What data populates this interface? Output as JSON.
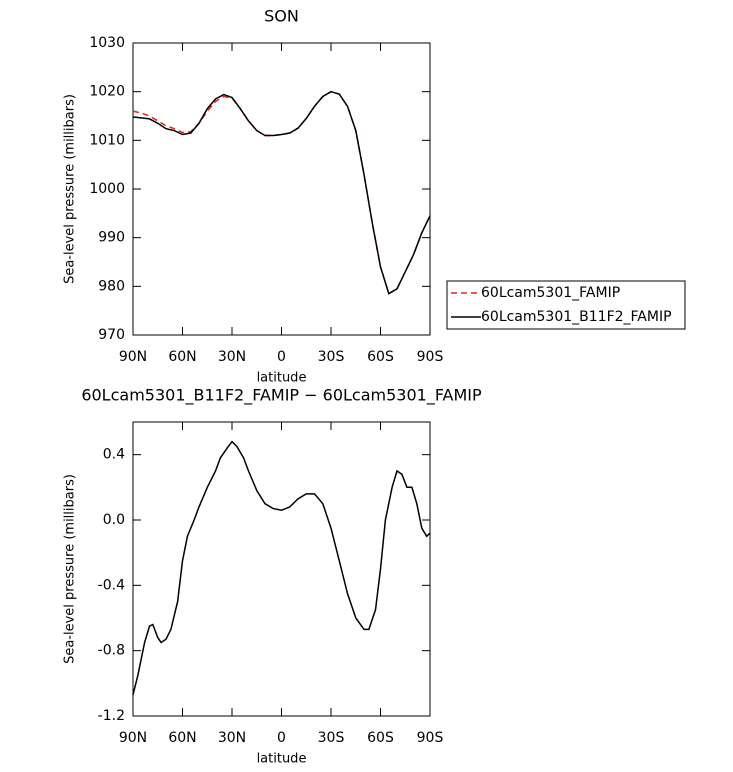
{
  "chart_data": [
    {
      "type": "line",
      "title": "SON",
      "xlabel": "latitude",
      "ylabel": "Sea-level pressure (millibars)",
      "x": [
        90,
        85,
        80,
        75,
        70,
        65,
        60,
        55,
        50,
        45,
        40,
        35,
        30,
        25,
        20,
        15,
        10,
        5,
        0,
        -5,
        -10,
        -15,
        -20,
        -25,
        -30,
        -35,
        -40,
        -45,
        -50,
        -55,
        -60,
        -65,
        -70,
        -75,
        -80,
        -85,
        -90
      ],
      "xlim": [
        90,
        -90
      ],
      "xticks": [
        {
          "value": 90,
          "label": "90N"
        },
        {
          "value": 60,
          "label": "60N"
        },
        {
          "value": 30,
          "label": "30N"
        },
        0,
        {
          "value": -30,
          "label": "30S"
        },
        {
          "value": -60,
          "label": "60S"
        },
        {
          "value": -90,
          "label": "90S"
        }
      ],
      "ylim": [
        970,
        1030
      ],
      "yticks": [
        970,
        980,
        990,
        1000,
        1010,
        1020,
        1030
      ],
      "legend": "outside-right",
      "series": [
        {
          "name": "60Lcam5301_FAMIP",
          "color": "#e8201e",
          "linestyle": "dashed",
          "values": [
            1016,
            1015.6,
            1015,
            1014,
            1013,
            1012.4,
            1011.6,
            1011.8,
            1013.5,
            1016,
            1018,
            1019,
            1018.7,
            1016.5,
            1014,
            1012,
            1011,
            1011,
            1011.2,
            1011.5,
            1012.5,
            1014.5,
            1017,
            1019,
            1020,
            1019.5,
            1017,
            1012,
            1003,
            993,
            984,
            978.5,
            979.5,
            983,
            986.5,
            991,
            994.5
          ]
        },
        {
          "name": "60Lcam5301_B11F2_FAMIP",
          "color": "#000000",
          "linestyle": "solid",
          "values": [
            1014.8,
            1014.6,
            1014.4,
            1013.5,
            1012.4,
            1012,
            1011.2,
            1011.5,
            1013.5,
            1016.5,
            1018.5,
            1019.4,
            1018.8,
            1016.5,
            1014,
            1012,
            1011,
            1011,
            1011.2,
            1011.5,
            1012.5,
            1014.5,
            1017,
            1019,
            1020,
            1019.5,
            1017,
            1012,
            1003,
            993,
            984,
            978.5,
            979.5,
            983,
            986.5,
            991,
            994.5
          ]
        }
      ]
    },
    {
      "type": "line",
      "title": "60Lcam5301_B11F2_FAMIP − 60Lcam5301_FAMIP",
      "xlabel": "latitude",
      "ylabel": "Sea-level pressure (millibars)",
      "x": [
        90,
        87,
        83,
        80,
        78,
        75,
        73,
        70,
        67,
        63,
        60,
        57,
        53,
        50,
        45,
        40,
        37,
        33,
        30,
        27,
        23,
        20,
        15,
        10,
        5,
        0,
        -5,
        -10,
        -15,
        -20,
        -25,
        -30,
        -35,
        -40,
        -45,
        -50,
        -53,
        -57,
        -60,
        -63,
        -67,
        -70,
        -73,
        -76,
        -79,
        -82,
        -85,
        -88,
        -90
      ],
      "xlim": [
        90,
        -90
      ],
      "xticks": [
        {
          "value": 90,
          "label": "90N"
        },
        {
          "value": 60,
          "label": "60N"
        },
        {
          "value": 30,
          "label": "30N"
        },
        0,
        {
          "value": -30,
          "label": "30S"
        },
        {
          "value": -60,
          "label": "60S"
        },
        {
          "value": -90,
          "label": "90S"
        }
      ],
      "ylim": [
        -1.2,
        0.6
      ],
      "yticks": [
        -1.2,
        -0.8,
        -0.4,
        {
          "value": 0,
          "label": "0.0"
        },
        0.4
      ],
      "series": [
        {
          "color": "#000000",
          "linestyle": "solid",
          "values": [
            -1.07,
            -0.95,
            -0.75,
            -0.65,
            -0.64,
            -0.72,
            -0.75,
            -0.73,
            -0.67,
            -0.5,
            -0.25,
            -0.1,
            0,
            0.08,
            0.2,
            0.3,
            0.38,
            0.44,
            0.48,
            0.45,
            0.38,
            0.3,
            0.18,
            0.1,
            0.07,
            0.06,
            0.08,
            0.13,
            0.16,
            0.16,
            0.1,
            -0.05,
            -0.25,
            -0.45,
            -0.6,
            -0.67,
            -0.67,
            -0.55,
            -0.3,
            0,
            0.2,
            0.3,
            0.28,
            0.2,
            0.2,
            0.1,
            -0.05,
            -0.1,
            -0.08
          ]
        }
      ]
    }
  ]
}
